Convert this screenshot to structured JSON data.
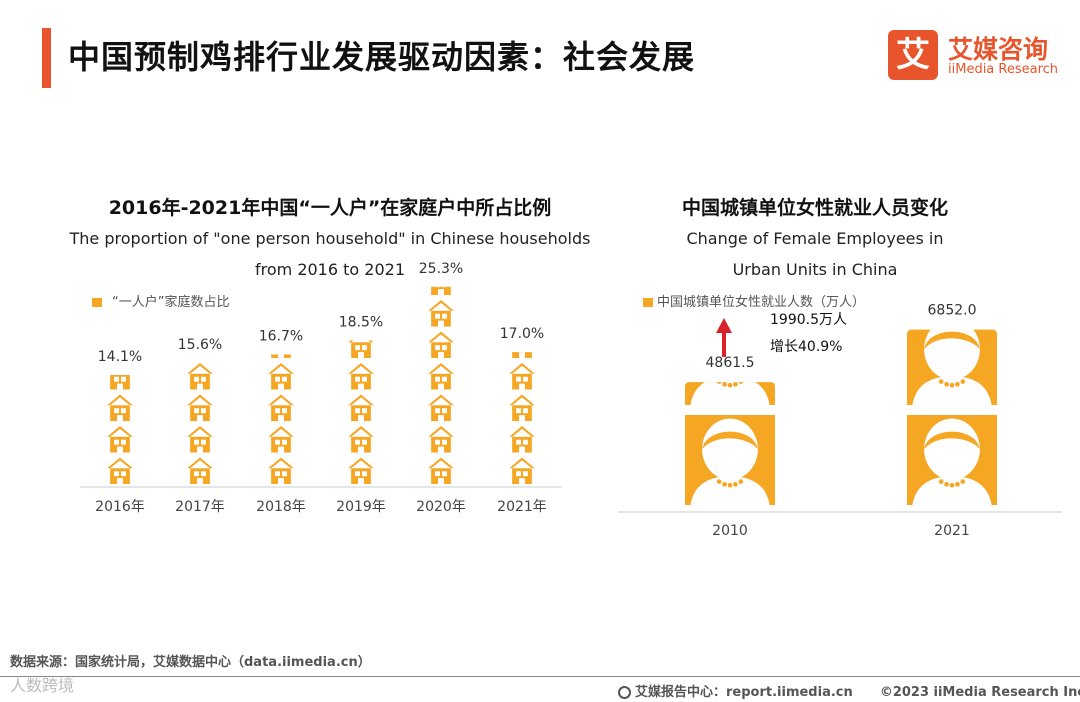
{
  "header": {
    "title": "中国预制鸡排行业发展驱动因素：社会发展",
    "logo_mark": "艾",
    "logo_cn": "艾媒咨询",
    "logo_en": "iiMedia Research"
  },
  "chart_data": [
    {
      "type": "bar",
      "title": "2016年-2021年中国“一人户”在家庭户中所占比例",
      "subtitle_line1": "The proportion of \"one person household\" in Chinese households",
      "subtitle_line2": "from 2016 to 2021",
      "legend": "“一人户”家庭数占比",
      "categories": [
        "2016年",
        "2017年",
        "2018年",
        "2019年",
        "2020年",
        "2021年"
      ],
      "values": [
        14.1,
        15.6,
        16.7,
        18.5,
        25.3,
        17.0
      ],
      "value_labels": [
        "14.1%",
        "15.6%",
        "16.7%",
        "18.5%",
        "25.3%",
        "17.0%"
      ],
      "unit": "%",
      "ylim": [
        0,
        30
      ],
      "marker": "house-icon",
      "color": "#f5a623"
    },
    {
      "type": "bar",
      "title": "中国城镇单位女性就业人员变化",
      "subtitle_line1": "Change of Female Employees in",
      "subtitle_line2": "Urban Units in China",
      "legend": "中国城镇单位女性就业人数（万人）",
      "categories": [
        "2010",
        "2021"
      ],
      "values": [
        4861.5,
        6852.0
      ],
      "value_labels": [
        "4861.5",
        "6852.0"
      ],
      "annotation_line1": "1990.5万人",
      "annotation_line2": "增长40.9%",
      "marker": "woman-icon",
      "color": "#f5a623",
      "arrow_color": "#d9222a"
    }
  ],
  "footer": {
    "source": "数据来源：国家统计局，艾媒数据中心（data.iimedia.cn）",
    "report": "艾媒报告中心：report.iimedia.cn",
    "copyright": "©2023  iiMedia Research  Inc",
    "watermark": "人数跨境"
  }
}
